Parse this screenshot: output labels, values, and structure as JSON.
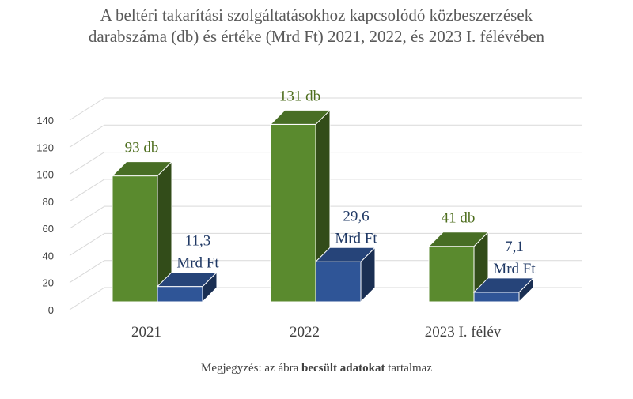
{
  "chart_data": {
    "type": "bar",
    "title_lines": [
      "A beltéri takarítási szolgáltatásokhoz kapcsolódó közbeszerzések",
      "darabszáma (db) és értéke (Mrd Ft) 2021, 2022, és 2023 I. félévében"
    ],
    "categories": [
      "2021",
      "2022",
      "2023 I. félév"
    ],
    "series": [
      {
        "values": [
          93,
          131,
          41
        ],
        "color": "#5a8a2e",
        "labels": [
          [
            "93 db"
          ],
          [
            "131 db"
          ],
          [
            "41 db"
          ]
        ]
      },
      {
        "values": [
          11.3,
          29.6,
          7.1
        ],
        "color": "#2f5597",
        "labels": [
          [
            "11,3",
            "Mrd Ft"
          ],
          [
            "29,6",
            "Mrd Ft"
          ],
          [
            "7,1",
            "Mrd Ft"
          ]
        ]
      }
    ],
    "yticks": [
      "0",
      "20",
      "40",
      "60",
      "80",
      "100",
      "120",
      "140"
    ],
    "ylim": [
      0,
      140
    ],
    "grid": true,
    "legend": "none",
    "three_d": true
  },
  "note": {
    "prefix": "Megjegyzés: az ábra ",
    "bold": "becsült adatokat",
    "suffix": " tartalmaz"
  }
}
